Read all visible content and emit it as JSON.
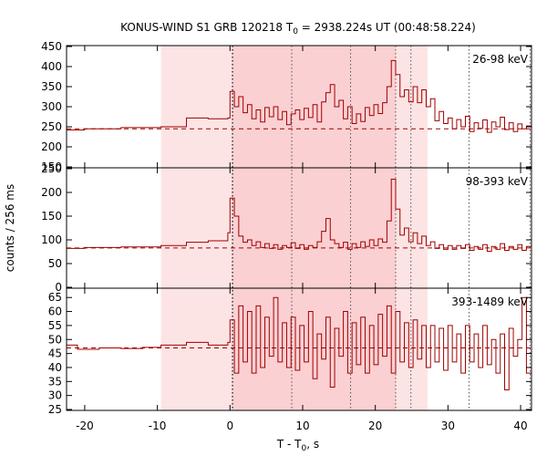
{
  "chart_data": {
    "type": "line",
    "title_main": "KONUS-WIND S1 GRB 120218 T",
    "title_sub": "0",
    "title_rest": " = 2938.224s UT (00:48:58.224)",
    "ylabel": "counts / 256 ms",
    "xlabel_main": "T - T",
    "xlabel_sub": "0",
    "xlabel_rest": ", s",
    "xlim": [
      -22.5,
      41.5
    ],
    "xticks": [
      -20,
      -10,
      0,
      10,
      20,
      30,
      40
    ],
    "xtick_labels": [
      "-20",
      "-10",
      "0",
      "10",
      "20",
      "30",
      "40"
    ],
    "shaded_regions": [
      {
        "start": -9.5,
        "end": 27.2,
        "color": "#fde4e4"
      },
      {
        "start": 0.3,
        "end": 22.8,
        "color": "#fbd0d3"
      }
    ],
    "vlines": [
      0.3,
      0.4,
      8.5,
      16.6,
      22.8,
      24.9,
      32.9,
      41.3
    ],
    "panels": [
      {
        "label": "26-98 keV",
        "ylim": [
          150,
          450
        ],
        "yticks": [
          150,
          200,
          250,
          300,
          350,
          400,
          450
        ],
        "background": 245,
        "line_color": "#a00000",
        "steps": [
          [
            -22.5,
            242
          ],
          [
            -20,
            245
          ],
          [
            -15,
            248
          ],
          [
            -9.5,
            250
          ],
          [
            -6,
            272
          ],
          [
            -3,
            270
          ],
          [
            -0.3,
            272
          ],
          [
            0,
            338
          ],
          [
            0.6,
            300
          ],
          [
            1.2,
            325
          ],
          [
            1.8,
            285
          ],
          [
            2.4,
            305
          ],
          [
            3.0,
            270
          ],
          [
            3.6,
            292
          ],
          [
            4.2,
            262
          ],
          [
            4.8,
            298
          ],
          [
            5.4,
            275
          ],
          [
            6.0,
            300
          ],
          [
            6.6,
            268
          ],
          [
            7.2,
            288
          ],
          [
            7.8,
            255
          ],
          [
            8.4,
            282
          ],
          [
            9.0,
            292
          ],
          [
            9.6,
            268
          ],
          [
            10.2,
            296
          ],
          [
            10.8,
            273
          ],
          [
            11.4,
            305
          ],
          [
            12.0,
            262
          ],
          [
            12.6,
            312
          ],
          [
            13.2,
            335
          ],
          [
            13.8,
            355
          ],
          [
            14.4,
            300
          ],
          [
            15.0,
            316
          ],
          [
            15.6,
            270
          ],
          [
            16.2,
            300
          ],
          [
            16.8,
            258
          ],
          [
            17.4,
            282
          ],
          [
            18.0,
            263
          ],
          [
            18.6,
            298
          ],
          [
            19.2,
            278
          ],
          [
            19.8,
            305
          ],
          [
            20.4,
            283
          ],
          [
            21.0,
            310
          ],
          [
            21.6,
            350
          ],
          [
            22.2,
            415
          ],
          [
            22.8,
            380
          ],
          [
            23.4,
            325
          ],
          [
            24.0,
            342
          ],
          [
            24.6,
            312
          ],
          [
            25.2,
            350
          ],
          [
            25.8,
            310
          ],
          [
            26.4,
            342
          ],
          [
            27.0,
            300
          ],
          [
            27.6,
            320
          ],
          [
            28.2,
            265
          ],
          [
            28.8,
            288
          ],
          [
            29.4,
            258
          ],
          [
            30.0,
            272
          ],
          [
            30.6,
            245
          ],
          [
            31.2,
            268
          ],
          [
            31.8,
            250
          ],
          [
            32.4,
            276
          ],
          [
            33.0,
            238
          ],
          [
            33.6,
            260
          ],
          [
            34.2,
            246
          ],
          [
            34.8,
            267
          ],
          [
            35.4,
            236
          ],
          [
            36.0,
            262
          ],
          [
            36.6,
            250
          ],
          [
            37.2,
            274
          ],
          [
            37.8,
            243
          ],
          [
            38.4,
            260
          ],
          [
            39.0,
            238
          ],
          [
            39.6,
            257
          ],
          [
            40.2,
            245
          ],
          [
            40.8,
            252
          ]
        ]
      },
      {
        "label": "98-393 keV",
        "ylim": [
          0,
          250
        ],
        "yticks": [
          0,
          50,
          100,
          150,
          200,
          250
        ],
        "background": 83,
        "line_color": "#a00000",
        "steps": [
          [
            -22.5,
            82
          ],
          [
            -20,
            84
          ],
          [
            -15,
            85
          ],
          [
            -9.5,
            88
          ],
          [
            -6,
            95
          ],
          [
            -3,
            98
          ],
          [
            -0.3,
            115
          ],
          [
            0,
            188
          ],
          [
            0.6,
            150
          ],
          [
            1.2,
            108
          ],
          [
            1.8,
            95
          ],
          [
            2.4,
            100
          ],
          [
            3.0,
            88
          ],
          [
            3.6,
            96
          ],
          [
            4.2,
            84
          ],
          [
            4.8,
            92
          ],
          [
            5.4,
            82
          ],
          [
            6.0,
            90
          ],
          [
            6.6,
            80
          ],
          [
            7.2,
            88
          ],
          [
            7.8,
            84
          ],
          [
            8.4,
            94
          ],
          [
            9.0,
            82
          ],
          [
            9.6,
            90
          ],
          [
            10.2,
            80
          ],
          [
            10.8,
            88
          ],
          [
            11.4,
            84
          ],
          [
            12.0,
            96
          ],
          [
            12.6,
            118
          ],
          [
            13.2,
            145
          ],
          [
            13.8,
            100
          ],
          [
            14.4,
            92
          ],
          [
            15.0,
            84
          ],
          [
            15.6,
            95
          ],
          [
            16.2,
            80
          ],
          [
            16.8,
            92
          ],
          [
            17.4,
            84
          ],
          [
            18.0,
            96
          ],
          [
            18.6,
            86
          ],
          [
            19.2,
            100
          ],
          [
            19.8,
            88
          ],
          [
            20.4,
            102
          ],
          [
            21.0,
            95
          ],
          [
            21.6,
            140
          ],
          [
            22.2,
            228
          ],
          [
            22.8,
            165
          ],
          [
            23.4,
            110
          ],
          [
            24.0,
            125
          ],
          [
            24.6,
            96
          ],
          [
            25.2,
            115
          ],
          [
            25.8,
            92
          ],
          [
            26.4,
            108
          ],
          [
            27.0,
            88
          ],
          [
            27.6,
            96
          ],
          [
            28.2,
            82
          ],
          [
            28.8,
            90
          ],
          [
            29.4,
            80
          ],
          [
            30.0,
            88
          ],
          [
            30.6,
            80
          ],
          [
            31.2,
            88
          ],
          [
            31.8,
            82
          ],
          [
            32.4,
            90
          ],
          [
            33.0,
            78
          ],
          [
            33.6,
            86
          ],
          [
            34.2,
            80
          ],
          [
            34.8,
            90
          ],
          [
            35.4,
            76
          ],
          [
            36.0,
            86
          ],
          [
            36.6,
            80
          ],
          [
            37.2,
            92
          ],
          [
            37.8,
            78
          ],
          [
            38.4,
            86
          ],
          [
            39.0,
            80
          ],
          [
            39.6,
            90
          ],
          [
            40.2,
            78
          ],
          [
            40.8,
            86
          ]
        ]
      },
      {
        "label": "393-1489 keV",
        "ylim": [
          25,
          68
        ],
        "yticks": [
          25,
          30,
          35,
          40,
          45,
          50,
          55,
          60,
          65
        ],
        "background": 47,
        "line_color": "#a00000",
        "steps": [
          [
            -22.5,
            48
          ],
          [
            -21,
            46.5
          ],
          [
            -18,
            47
          ],
          [
            -15,
            46.8
          ],
          [
            -12,
            47.2
          ],
          [
            -9.5,
            48
          ],
          [
            -6,
            49
          ],
          [
            -3,
            48
          ],
          [
            -0.3,
            49
          ],
          [
            0,
            57
          ],
          [
            0.6,
            38
          ],
          [
            1.2,
            62
          ],
          [
            1.8,
            42
          ],
          [
            2.4,
            60
          ],
          [
            3.0,
            38
          ],
          [
            3.6,
            62
          ],
          [
            4.2,
            40
          ],
          [
            4.8,
            58
          ],
          [
            5.4,
            44
          ],
          [
            6.0,
            65
          ],
          [
            6.6,
            42
          ],
          [
            7.2,
            56
          ],
          [
            7.8,
            40
          ],
          [
            8.4,
            58
          ],
          [
            9.0,
            39
          ],
          [
            9.6,
            55
          ],
          [
            10.2,
            42
          ],
          [
            10.8,
            60
          ],
          [
            11.4,
            36
          ],
          [
            12.0,
            52
          ],
          [
            12.6,
            43
          ],
          [
            13.2,
            58
          ],
          [
            13.8,
            33
          ],
          [
            14.4,
            54
          ],
          [
            15.0,
            44
          ],
          [
            15.6,
            60
          ],
          [
            16.2,
            38
          ],
          [
            16.8,
            56
          ],
          [
            17.4,
            41
          ],
          [
            18.0,
            58
          ],
          [
            18.6,
            38
          ],
          [
            19.2,
            55
          ],
          [
            19.8,
            41
          ],
          [
            20.4,
            59
          ],
          [
            21.0,
            44
          ],
          [
            21.6,
            62
          ],
          [
            22.2,
            38
          ],
          [
            22.8,
            60
          ],
          [
            23.4,
            42
          ],
          [
            24.0,
            56
          ],
          [
            24.6,
            40
          ],
          [
            25.2,
            57
          ],
          [
            25.8,
            43
          ],
          [
            26.4,
            55
          ],
          [
            27.0,
            40
          ],
          [
            27.6,
            55
          ],
          [
            28.2,
            42
          ],
          [
            28.8,
            54
          ],
          [
            29.4,
            39
          ],
          [
            30.0,
            55
          ],
          [
            30.6,
            42
          ],
          [
            31.2,
            52
          ],
          [
            31.8,
            38
          ],
          [
            32.4,
            55
          ],
          [
            33.0,
            42
          ],
          [
            33.6,
            52
          ],
          [
            34.2,
            40
          ],
          [
            34.8,
            55
          ],
          [
            35.4,
            41
          ],
          [
            36.0,
            50
          ],
          [
            36.6,
            38
          ],
          [
            37.2,
            52
          ],
          [
            37.8,
            32
          ],
          [
            38.4,
            54
          ],
          [
            39.0,
            44
          ],
          [
            39.6,
            50
          ],
          [
            40.2,
            65
          ],
          [
            40.8,
            38
          ]
        ]
      }
    ]
  }
}
